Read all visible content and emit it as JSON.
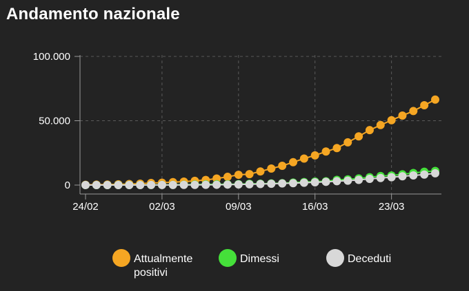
{
  "title": "Andamento nazionale",
  "colors": {
    "background": "#232323",
    "axis": "#9a9a9a",
    "grid": "#5a5a5a",
    "text": "#ffffff"
  },
  "chart_data": {
    "type": "line",
    "x_start": "24/02",
    "x": [
      "24/02",
      "25/02",
      "26/02",
      "27/02",
      "28/02",
      "29/02",
      "01/03",
      "02/03",
      "03/03",
      "04/03",
      "05/03",
      "06/03",
      "07/03",
      "08/03",
      "09/03",
      "10/03",
      "11/03",
      "12/03",
      "13/03",
      "14/03",
      "15/03",
      "16/03",
      "17/03",
      "18/03",
      "19/03",
      "20/03",
      "21/03",
      "22/03",
      "23/03",
      "24/03",
      "25/03",
      "26/03",
      "27/03"
    ],
    "x_tick_labels": [
      "24/02",
      "02/03",
      "09/03",
      "16/03",
      "23/03"
    ],
    "y_tick_labels": [
      "0",
      "50.000",
      "100.000"
    ],
    "ylim": [
      0,
      100000
    ],
    "grid": true,
    "legend_position": "bottom",
    "series": [
      {
        "name": "Attualmente positivi",
        "color": "#f5a623",
        "values": [
          221,
          311,
          385,
          588,
          821,
          1049,
          1577,
          1835,
          2263,
          2706,
          3296,
          3916,
          5061,
          6387,
          7985,
          8514,
          10590,
          12839,
          14955,
          17750,
          20603,
          23073,
          26062,
          28710,
          33190,
          37860,
          42681,
          46638,
          50418,
          54030,
          57521,
          62013,
          66414
        ]
      },
      {
        "name": "Dimessi",
        "color": "#45e03a",
        "values": [
          1,
          1,
          3,
          45,
          46,
          50,
          83,
          149,
          160,
          276,
          414,
          523,
          589,
          622,
          724,
          1004,
          1045,
          1258,
          1439,
          1966,
          2335,
          2749,
          2941,
          4025,
          4440,
          5129,
          6072,
          7024,
          7432,
          8326,
          9362,
          10361,
          10950
        ]
      },
      {
        "name": "Deceduti",
        "color": "#d8d8d8",
        "values": [
          7,
          10,
          12,
          17,
          21,
          29,
          34,
          52,
          79,
          107,
          148,
          197,
          233,
          366,
          463,
          631,
          827,
          1016,
          1266,
          1441,
          1809,
          2158,
          2503,
          2978,
          3405,
          4032,
          4825,
          5476,
          6077,
          6820,
          7503,
          8165,
          9134
        ]
      }
    ]
  },
  "legend": [
    {
      "label": "Attualmente",
      "label2": "positivi"
    },
    {
      "label": "Dimessi",
      "label2": ""
    },
    {
      "label": "Deceduti",
      "label2": ""
    }
  ]
}
